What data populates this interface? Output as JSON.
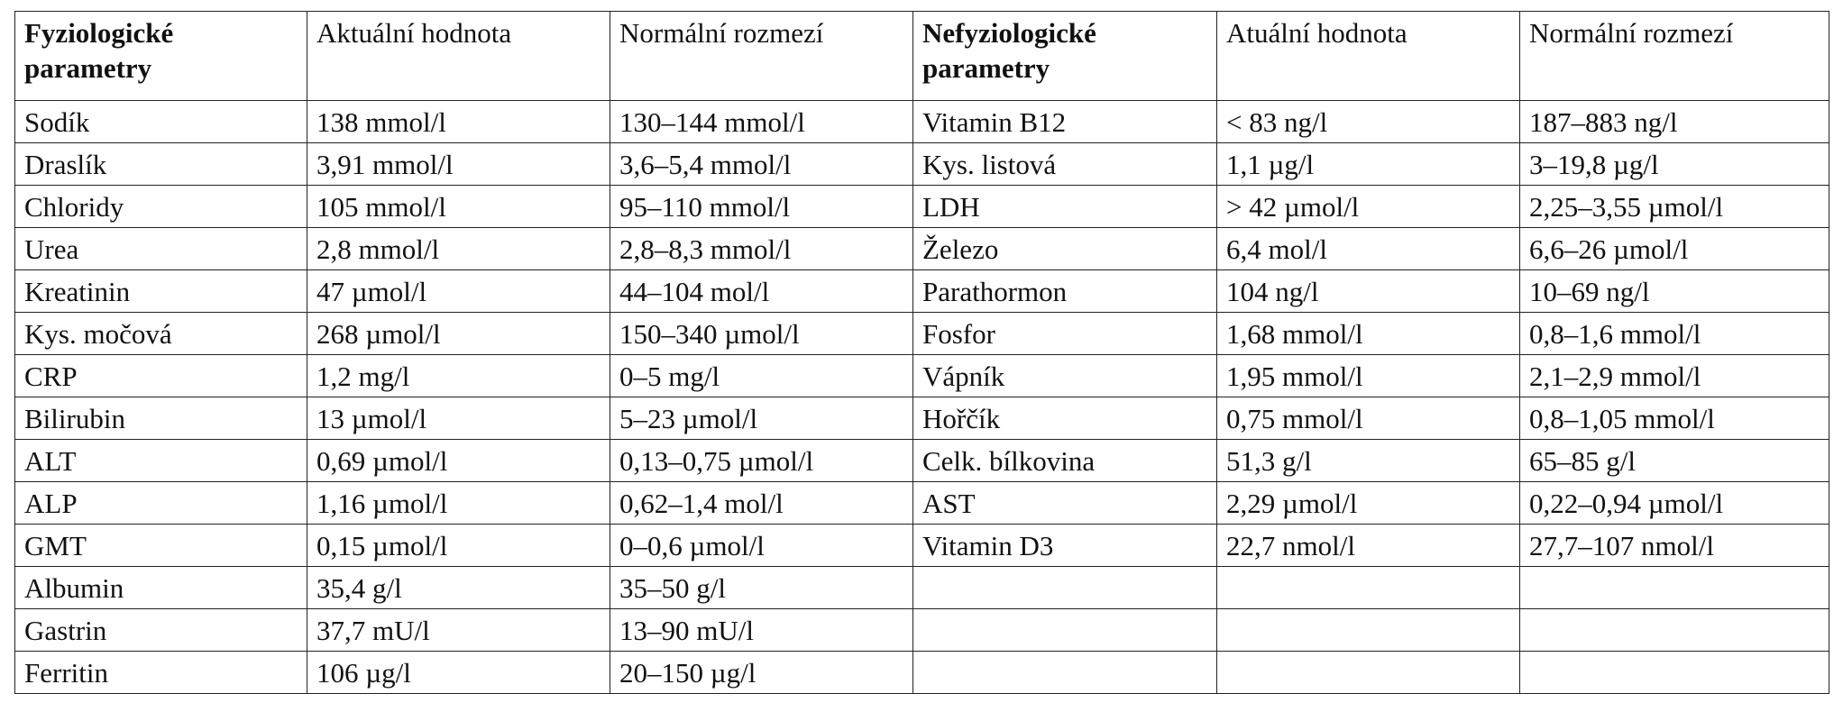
{
  "table": {
    "headers": [
      "Fyziologické parametry",
      "Aktuální hodnota",
      "Normální rozmezí",
      "Nefyziologické parametry",
      "Atuální hodnota",
      "Normální rozmezí"
    ],
    "rows": [
      [
        "Sodík",
        "138 mmol/l",
        "130–144 mmol/l",
        "Vitamin B12",
        "< 83 ng/l",
        "187–883 ng/l"
      ],
      [
        "Draslík",
        "3,91 mmol/l",
        "3,6–5,4 mmol/l",
        "Kys. listová",
        "1,1 µg/l",
        "3–19,8 µg/l"
      ],
      [
        "Chloridy",
        "105 mmol/l",
        "95–110 mmol/l",
        "LDH",
        "> 42 µmol/l",
        "2,25–3,55 µmol/l"
      ],
      [
        "Urea",
        "2,8 mmol/l",
        "2,8–8,3 mmol/l",
        "Železo",
        "6,4 mol/l",
        "6,6–26 µmol/l"
      ],
      [
        "Kreatinin",
        "47 µmol/l",
        "44–104 mol/l",
        "Parathormon",
        "104 ng/l",
        "10–69 ng/l"
      ],
      [
        "Kys. močová",
        "268 µmol/l",
        "150–340 µmol/l",
        "Fosfor",
        "1,68 mmol/l",
        "0,8–1,6 mmol/l"
      ],
      [
        "CRP",
        "1,2 mg/l",
        "0–5 mg/l",
        "Vápník",
        "1,95 mmol/l",
        "2,1–2,9 mmol/l"
      ],
      [
        "Bilirubin",
        "13 µmol/l",
        "5–23 µmol/l",
        "Hořčík",
        "0,75 mmol/l",
        "0,8–1,05 mmol/l"
      ],
      [
        "ALT",
        "0,69 µmol/l",
        "0,13–0,75 µmol/l",
        "Celk. bílkovina",
        "51,3 g/l",
        "65–85 g/l"
      ],
      [
        "ALP",
        "1,16 µmol/l",
        "0,62–1,4 mol/l",
        "AST",
        "2,29 µmol/l",
        "0,22–0,94 µmol/l"
      ],
      [
        "GMT",
        "0,15 µmol/l",
        "0–0,6 µmol/l",
        "Vitamin D3",
        "22,7 nmol/l",
        "27,7–107 nmol/l"
      ],
      [
        "Albumin",
        "35,4 g/l",
        "35–50 g/l",
        "",
        "",
        ""
      ],
      [
        "Gastrin",
        "37,7 mU/l",
        "13–90 mU/l",
        "",
        "",
        ""
      ],
      [
        "Ferritin",
        "106 µg/l",
        "20–150 µg/l",
        "",
        "",
        ""
      ]
    ]
  }
}
